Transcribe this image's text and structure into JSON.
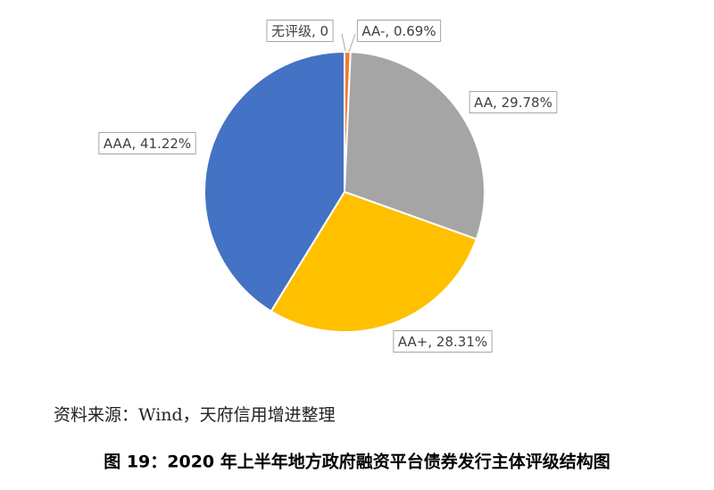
{
  "chart_data": {
    "type": "pie",
    "categories": [
      "无评级",
      "AA-",
      "AA",
      "AA+",
      "AAA"
    ],
    "values": [
      0,
      0.69,
      29.78,
      28.31,
      41.22
    ],
    "value_labels": [
      "0",
      "0.69%",
      "29.78%",
      "28.31%",
      "41.22%"
    ],
    "label_separator": ", ",
    "colors": [
      "#5b9bd5",
      "#ed7d31",
      "#a5a5a5",
      "#ffc000",
      "#4472c4"
    ],
    "source": "资料来源：Wind，天府信用增进整理",
    "caption": "图 19：2020 年上半年地方政府融资平台债券发行主体评级结构图"
  }
}
